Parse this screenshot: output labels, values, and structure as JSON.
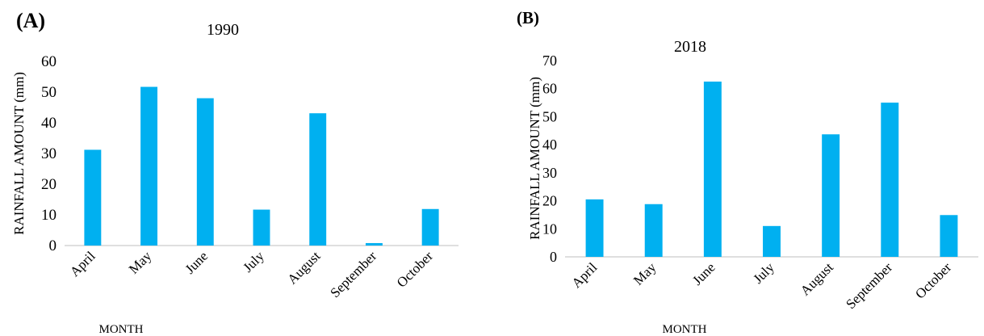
{
  "chart_data": [
    {
      "panel_label": "(A)",
      "type": "bar",
      "title": "1990",
      "xlabel": "MONTH",
      "ylabel": "RAINFALL AMOUNT (mm)",
      "categories": [
        "April",
        "May",
        "June",
        "July",
        "August",
        "September",
        "October"
      ],
      "values": [
        31.2,
        51.7,
        48.0,
        11.7,
        43.1,
        0.8,
        11.9
      ],
      "ylim": [
        0,
        60
      ],
      "yticks": [
        "0",
        "10",
        "20",
        "30",
        "40",
        "50",
        "60"
      ],
      "grid": false,
      "bar_color": "#00B0F0"
    },
    {
      "panel_label": "(B)",
      "type": "bar",
      "title": "2018",
      "xlabel": "MONTH",
      "ylabel": "RAINFALL AMOUNT (mm)",
      "categories": [
        "April",
        "May",
        "June",
        "July",
        "August",
        "September",
        "October"
      ],
      "values": [
        20.5,
        18.8,
        62.5,
        11.0,
        43.7,
        55.0,
        14.9
      ],
      "ylim": [
        0,
        70
      ],
      "yticks": [
        "0",
        "10",
        "20",
        "30",
        "40",
        "50",
        "60",
        "70"
      ],
      "grid": false,
      "bar_color": "#00B0F0"
    }
  ]
}
